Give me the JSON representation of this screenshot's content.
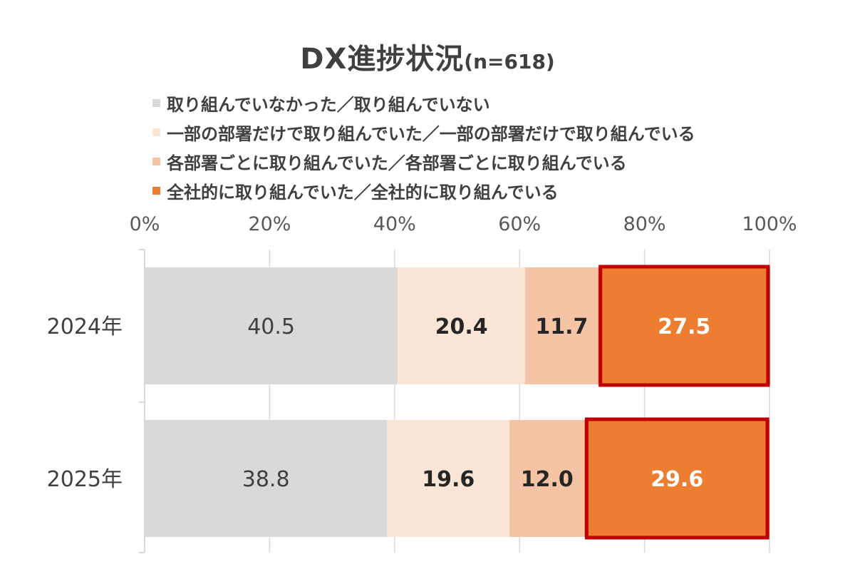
{
  "chart_data": {
    "type": "bar",
    "orientation": "horizontal",
    "stacked": true,
    "title": "DX進捗状況",
    "subtitle": "(n=618)",
    "categories": [
      "2024年",
      "2025年"
    ],
    "series": [
      {
        "name": "取り組んでいなかった／取り組んでいない",
        "color": "#d9d9d9",
        "label_color": "#404040",
        "values": [
          40.5,
          38.8
        ]
      },
      {
        "name": "一部の部署だけで取り組んでいた／一部の部署だけで取り組んでいる",
        "color": "#fbe5d6",
        "label_color": "#262626",
        "values": [
          20.4,
          19.6
        ]
      },
      {
        "name": "各部署ごとに取り組んでいた／各部署ごとに取り組んでいる",
        "color": "#f4c4a4",
        "label_color": "#262626",
        "values": [
          11.7,
          12.0
        ]
      },
      {
        "name": "全社的に取り組んでいた／全社的に取り組んでいる",
        "color": "#ed7d31",
        "label_color": "#ffffff",
        "values": [
          27.5,
          29.6
        ]
      }
    ],
    "xlim": [
      0,
      100
    ],
    "xticks": [
      "0%",
      "20%",
      "40%",
      "60%",
      "80%",
      "100%"
    ],
    "x_axis_position": "top",
    "gridlines": true,
    "legend_position": "top-left",
    "highlight": {
      "series": "全社的に取り組んでいた／全社的に取り組んでいる",
      "outline_color": "#c00000"
    }
  }
}
